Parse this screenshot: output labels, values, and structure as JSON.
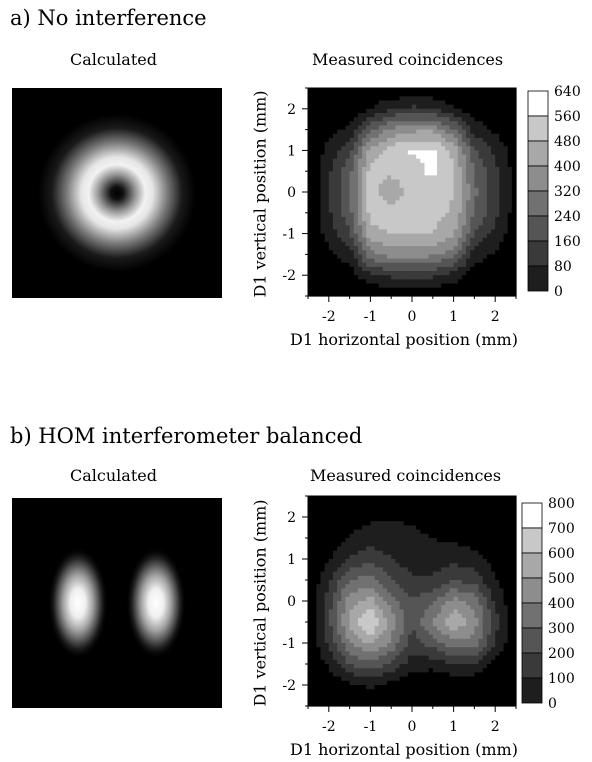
{
  "panels": [
    {
      "title": "a) No interference",
      "calc_label": "Calculated",
      "meas_label": "Measured coincidences",
      "xlabel": "D1 horizontal position (mm)",
      "ylabel": "D1 vertical position (mm)",
      "colorbar_ticks": [
        "640",
        "560",
        "480",
        "400",
        "320",
        "240",
        "160",
        "80",
        "0"
      ]
    },
    {
      "title": "b) HOM interferometer balanced",
      "calc_label": "Calculated",
      "meas_label": "Measured coincidences",
      "xlabel": "D1 horizontal position (mm)",
      "ylabel": "D1 vertical position (mm)",
      "colorbar_ticks": [
        "800",
        "700",
        "600",
        "500",
        "400",
        "300",
        "200",
        "100",
        "0"
      ]
    }
  ],
  "chart_data": [
    {
      "type": "heatmap",
      "panel": "a) No interference",
      "subtitle": "Measured coincidences",
      "xlabel": "D1 horizontal position (mm)",
      "ylabel": "D1 vertical position (mm)",
      "xlim": [
        -2.5,
        2.5
      ],
      "ylim": [
        -2.5,
        2.5
      ],
      "xticks": [
        -2,
        -1,
        0,
        1,
        2
      ],
      "yticks": [
        -2,
        -1,
        0,
        1,
        2
      ],
      "colorbar_levels": [
        0,
        80,
        160,
        240,
        320,
        400,
        480,
        560,
        640
      ],
      "colormap": [
        "#000000",
        "#1e1e1e",
        "#3a3a3a",
        "#555555",
        "#717171",
        "#8d8d8d",
        "#a8a8a8",
        "#c8c8c8",
        "#ffffff"
      ],
      "x": [
        -2.5,
        -1.5,
        -1,
        -0.5,
        0,
        0.5,
        1,
        1.5,
        2.5
      ],
      "y": [
        -2.5,
        -2,
        -1.5,
        -1,
        -0.5,
        0,
        0.5,
        1,
        1.5,
        2,
        2.5
      ],
      "z": [
        [
          0,
          0,
          0,
          0,
          0,
          0,
          0,
          0,
          0
        ],
        [
          0,
          40,
          140,
          180,
          180,
          180,
          130,
          40,
          0
        ],
        [
          0,
          120,
          380,
          430,
          440,
          420,
          360,
          120,
          20
        ],
        [
          0,
          230,
          530,
          560,
          560,
          560,
          500,
          240,
          30
        ],
        [
          0,
          290,
          590,
          600,
          600,
          580,
          550,
          320,
          40
        ],
        [
          0,
          300,
          590,
          500,
          590,
          600,
          560,
          340,
          40
        ],
        [
          0,
          290,
          590,
          580,
          610,
          660,
          560,
          320,
          40
        ],
        [
          0,
          220,
          510,
          600,
          650,
          650,
          540,
          250,
          30
        ],
        [
          0,
          100,
          300,
          420,
          460,
          470,
          330,
          120,
          10
        ],
        [
          0,
          20,
          80,
          150,
          180,
          160,
          90,
          30,
          0
        ],
        [
          0,
          0,
          0,
          0,
          0,
          0,
          0,
          0,
          0
        ]
      ]
    },
    {
      "type": "heatmap",
      "panel": "b) HOM interferometer balanced",
      "subtitle": "Measured coincidences",
      "xlabel": "D1 horizontal position (mm)",
      "ylabel": "D1 vertical position (mm)",
      "xlim": [
        -2.5,
        2.5
      ],
      "ylim": [
        -2.5,
        2.5
      ],
      "xticks": [
        -2,
        -1,
        0,
        1,
        2
      ],
      "yticks": [
        -2,
        -1,
        0,
        1,
        2
      ],
      "colorbar_levels": [
        0,
        100,
        200,
        300,
        400,
        500,
        600,
        700,
        800
      ],
      "colormap": [
        "#000000",
        "#1e1e1e",
        "#3a3a3a",
        "#555555",
        "#717171",
        "#8d8d8d",
        "#a8a8a8",
        "#c8c8c8",
        "#ffffff"
      ],
      "x": [
        -2.5,
        -2,
        -1.5,
        -1,
        -0.5,
        0,
        0.5,
        1,
        1.5,
        2,
        2.5
      ],
      "y": [
        -2.5,
        -2,
        -1.5,
        -1,
        -0.5,
        0,
        0.5,
        1,
        1.5,
        2,
        2.5
      ],
      "z": [
        [
          0,
          0,
          0,
          0,
          0,
          0,
          0,
          0,
          0,
          0,
          0
        ],
        [
          0,
          20,
          80,
          120,
          60,
          0,
          0,
          0,
          0,
          0,
          0
        ],
        [
          0,
          120,
          300,
          380,
          280,
          150,
          140,
          210,
          200,
          60,
          0
        ],
        [
          0,
          220,
          500,
          620,
          480,
          250,
          350,
          480,
          460,
          200,
          10
        ],
        [
          0,
          280,
          620,
          820,
          560,
          310,
          520,
          680,
          560,
          240,
          20
        ],
        [
          0,
          260,
          560,
          640,
          450,
          310,
          380,
          540,
          460,
          180,
          10
        ],
        [
          0,
          180,
          400,
          440,
          310,
          220,
          220,
          290,
          260,
          110,
          0
        ],
        [
          0,
          90,
          220,
          260,
          200,
          140,
          140,
          170,
          140,
          50,
          0
        ],
        [
          0,
          30,
          110,
          160,
          150,
          130,
          100,
          80,
          40,
          0,
          0
        ],
        [
          0,
          0,
          40,
          80,
          90,
          80,
          20,
          0,
          0,
          0,
          0
        ],
        [
          0,
          0,
          0,
          0,
          0,
          0,
          0,
          0,
          0,
          0,
          0
        ]
      ]
    }
  ]
}
